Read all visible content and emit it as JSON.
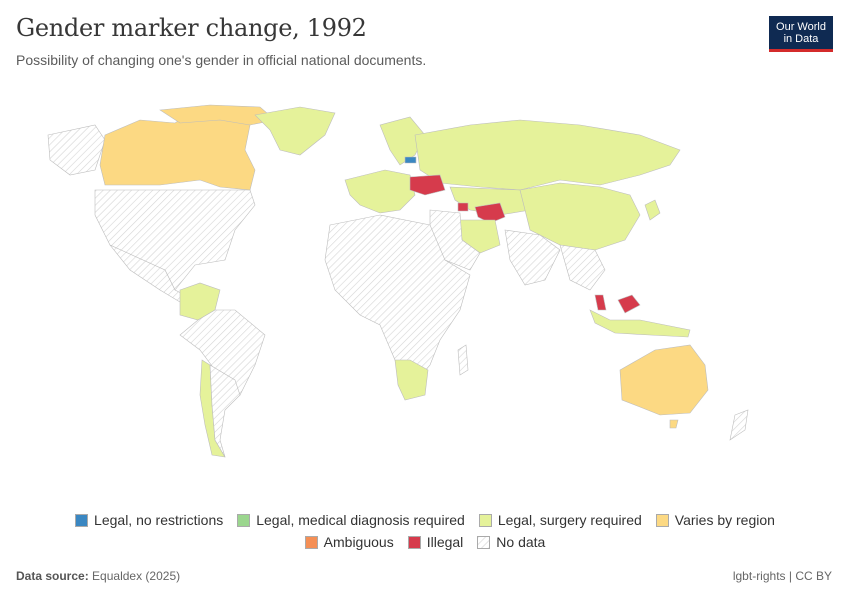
{
  "header": {
    "title": "Gender marker change, 1992",
    "subtitle": "Possibility of changing one's gender in official national documents."
  },
  "logo": {
    "line1": "Our World",
    "line2": "in Data"
  },
  "colors": {
    "legal_no_restrictions": "#3a87c2",
    "legal_medical": "#9bd68e",
    "legal_surgery": "#e5f29a",
    "varies": "#fcd983",
    "ambiguous": "#f58f55",
    "illegal": "#d63b4c",
    "no_data": "#ffffff"
  },
  "legend": {
    "row1": [
      {
        "label": "Legal, no restrictions",
        "color": "#3a87c2"
      },
      {
        "label": "Legal, medical diagnosis required",
        "color": "#9bd68e"
      },
      {
        "label": "Legal, surgery required",
        "color": "#e5f29a"
      },
      {
        "label": "Varies by region",
        "color": "#fcd983"
      }
    ],
    "row2": [
      {
        "label": "Ambiguous",
        "color": "#f58f55"
      },
      {
        "label": "Illegal",
        "color": "#d63b4c"
      },
      {
        "label": "No data",
        "color": "hatch"
      }
    ]
  },
  "footer": {
    "source_label": "Data source:",
    "source": "Equaldex (2025)",
    "right": "lgbt-rights | CC BY"
  }
}
